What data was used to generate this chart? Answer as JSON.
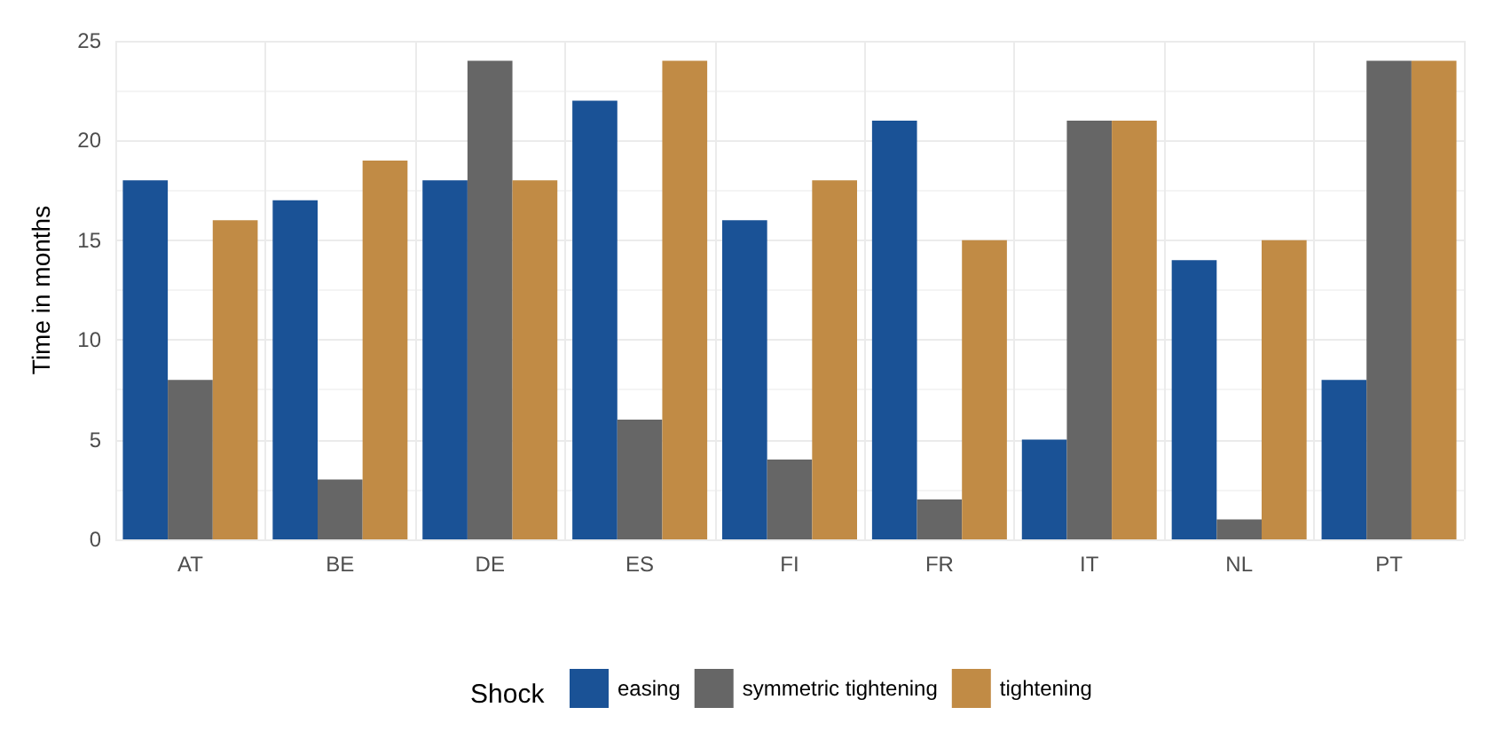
{
  "chart_data": {
    "type": "bar",
    "ylabel": "Time in months",
    "legend_title": "Shock",
    "categories": [
      "AT",
      "BE",
      "DE",
      "ES",
      "FI",
      "FR",
      "IT",
      "NL",
      "PT"
    ],
    "series": [
      {
        "name": "easing",
        "color": "#1a5296",
        "values": [
          18,
          17,
          18,
          22,
          16,
          21,
          5,
          14,
          8
        ]
      },
      {
        "name": "symmetric tightening",
        "color": "#666666",
        "values": [
          8,
          3,
          24,
          6,
          4,
          2,
          21,
          1,
          24
        ]
      },
      {
        "name": "tightening",
        "color": "#c18b45",
        "values": [
          16,
          19,
          18,
          24,
          18,
          15,
          21,
          15,
          24
        ]
      }
    ],
    "ylim": [
      0,
      25
    ],
    "yticks": [
      0,
      5,
      10,
      15,
      20,
      25
    ],
    "grid": true,
    "legend": "bottom"
  }
}
